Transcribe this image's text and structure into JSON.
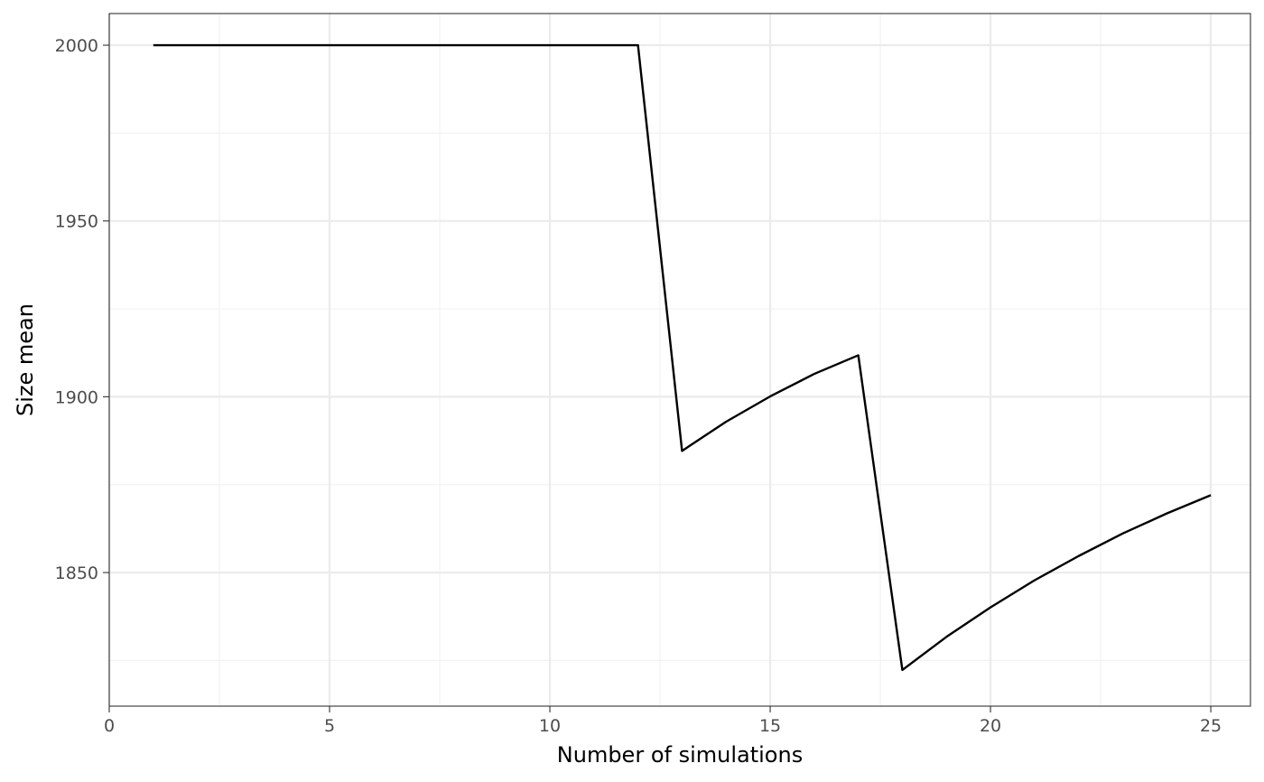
{
  "chart_data": {
    "type": "line",
    "title": "",
    "xlabel": "Number of simulations",
    "ylabel": "Size mean",
    "xlim": [
      0,
      25.9
    ],
    "ylim": [
      1812,
      2009
    ],
    "x_ticks": [
      0,
      5,
      10,
      15,
      20,
      25
    ],
    "y_ticks": [
      1850,
      1900,
      1950,
      2000
    ],
    "x_tick_labels": [
      "0",
      "5",
      "10",
      "15",
      "20",
      "25"
    ],
    "y_tick_labels": [
      "1850",
      "1900",
      "1950",
      "2000"
    ],
    "grid": true,
    "legend": "none",
    "line_color": "#000000",
    "series": [
      {
        "x": [
          1,
          2,
          3,
          4,
          5,
          6,
          7,
          8,
          9,
          10,
          11,
          12,
          13,
          14,
          15,
          16,
          17,
          18,
          19,
          20,
          21,
          22,
          23,
          24,
          25
        ],
        "values": [
          2000,
          2000,
          2000,
          2000,
          2000,
          2000,
          2000,
          2000,
          2000,
          2000,
          2000,
          2000,
          1884.6,
          1892.9,
          1900.1,
          1906.5,
          1911.8,
          1822.3,
          1831.7,
          1840.1,
          1847.8,
          1854.7,
          1861.1,
          1866.8,
          1872.0
        ]
      }
    ]
  }
}
